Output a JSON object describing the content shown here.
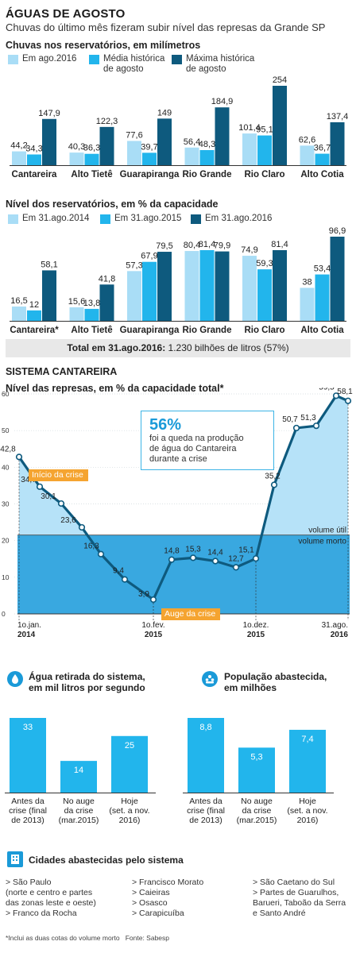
{
  "header": {
    "title": "ÁGUAS DE AGOSTO",
    "subtitle": "Chuvas do último mês fizeram subir nível das represas da Grande SP"
  },
  "colors": {
    "light": "#a9ddf6",
    "mid": "#22b5ec",
    "dark": "#0e5a7e",
    "orange": "#f5a430"
  },
  "chart_data": [
    {
      "type": "bar",
      "title": "Chuvas nos reservatórios, em milímetros",
      "categories": [
        "Cantareira",
        "Alto Tietê",
        "Guarapiranga",
        "Rio Grande",
        "Rio Claro",
        "Alto Cotia"
      ],
      "series": [
        {
          "name": "Em ago.2016",
          "values": [
            44.2,
            40.3,
            77.6,
            56.4,
            101.4,
            62.6
          ],
          "labels": [
            "44,2",
            "40,3",
            "77,6",
            "56,4",
            "101,4",
            "62,6"
          ]
        },
        {
          "name": "Média histórica de agosto",
          "values": [
            34.3,
            36.3,
            39.7,
            48.3,
            95.1,
            36.7
          ],
          "labels": [
            "34,3",
            "36,3",
            "39,7",
            "48,3",
            "95,1",
            "36,7"
          ]
        },
        {
          "name": "Máxima histórica de agosto",
          "values": [
            147.9,
            122.3,
            149,
            184.9,
            254,
            137.4
          ],
          "labels": [
            "147,9",
            "122,3",
            "149",
            "184,9",
            "254",
            "137,4"
          ]
        }
      ],
      "ylim": [
        0,
        254
      ]
    },
    {
      "type": "bar",
      "title": "Nível dos reservatórios, em % da capacidade",
      "categories": [
        "Cantareira*",
        "Alto Tietê",
        "Guarapiranga",
        "Rio Grande",
        "Rio Claro",
        "Alto Cotia"
      ],
      "series": [
        {
          "name": "Em 31.ago.2014",
          "values": [
            16.5,
            15.6,
            57.3,
            80.4,
            74.9,
            38
          ],
          "labels": [
            "16,5",
            "15,6",
            "57,3",
            "80,4",
            "74,9",
            "38"
          ]
        },
        {
          "name": "Em 31.ago.2015",
          "values": [
            12,
            13.8,
            67.9,
            81.4,
            59.3,
            53.4
          ],
          "labels": [
            "12",
            "13,8",
            "67,9",
            "81,4",
            "59,3",
            "53,4"
          ]
        },
        {
          "name": "Em 31.ago.2016",
          "values": [
            58.1,
            41.8,
            79.5,
            79.9,
            81.4,
            96.9
          ],
          "labels": [
            "58,1",
            "41,8",
            "79,5",
            "79,9",
            "81,4",
            "96,9"
          ]
        }
      ],
      "ylim": [
        0,
        96.9
      ]
    },
    {
      "type": "line",
      "title": "Nível das represas, em % da capacidade total*",
      "points": [
        {
          "v": 42.8,
          "label": "42,8"
        },
        {
          "v": 34.7,
          "label": "34,7"
        },
        {
          "v": 30.1,
          "label": "30,1"
        },
        {
          "v": 23.6,
          "label": "23,6"
        },
        {
          "v": 16.3,
          "label": "16,3"
        },
        {
          "v": 9.4,
          "label": "9,4"
        },
        {
          "v": 3.9,
          "label": "3,9"
        },
        {
          "v": 14.8,
          "label": "14,8"
        },
        {
          "v": 15.3,
          "label": "15,3"
        },
        {
          "v": 14.4,
          "label": "14,4"
        },
        {
          "v": 12.7,
          "label": "12,7"
        },
        {
          "v": 15.1,
          "label": "15,1"
        },
        {
          "v": 35.2,
          "label": "35,2"
        },
        {
          "v": 50.7,
          "label": "50,7"
        },
        {
          "v": 51.3,
          "label": "51,3"
        },
        {
          "v": 59.5,
          "label": "59,5"
        },
        {
          "v": 58.1,
          "label": "58,1"
        }
      ],
      "yticks": [
        "60",
        "50",
        "40",
        "30",
        "20",
        "10",
        "0"
      ],
      "ylim": [
        0,
        60
      ],
      "xticks": [
        {
          "day": "1o.jan.",
          "year": "2014"
        },
        {
          "day": "1o.fev.",
          "year": "2015"
        },
        {
          "day": "1o.dez.",
          "year": "2015"
        },
        {
          "day": "31.ago.",
          "year": "2016"
        }
      ],
      "threshold": 21.5,
      "threshold_labels": {
        "above": "volume útil",
        "below": "volume morto"
      }
    },
    {
      "type": "bar",
      "title": "Água retirada do sistema, em mil litros por segundo",
      "categories": [
        "Antes da crise (final de 2013)",
        "No auge da crise (mar.2015)",
        "Hoje (set. a nov. 2016)"
      ],
      "values": [
        33,
        14,
        25
      ]
    },
    {
      "type": "bar",
      "title": "População abastecida, em milhões",
      "categories": [
        "Antes da crise (final de 2013)",
        "No auge da crise (mar.2015)",
        "Hoje (set. a nov. 2016)"
      ],
      "values": [
        8.8,
        5.3,
        7.4
      ],
      "labels": [
        "8,8",
        "5,3",
        "7,4"
      ]
    }
  ],
  "total": {
    "label": "Total em 31.ago.2016:",
    "value": "1.230 bilhões de litros (57%)"
  },
  "cantareira": {
    "section_title": "SISTEMA CANTAREIRA",
    "chart_title": "Nível das represas, em % da capacidade total*",
    "callout_big": "56%",
    "callout_l1": "foi a queda na produção",
    "callout_l2": "de água do Cantareira",
    "callout_l3": "durante a crise",
    "tag_start": "Início da crise",
    "tag_peak": "Auge da crise"
  },
  "small1": {
    "title1": "Água retirada do sistema,",
    "title2": "em mil litros por segundo",
    "values": [
      "33",
      "14",
      "25"
    ],
    "cats": [
      [
        "Antes da",
        "crise (final",
        "de 2013)"
      ],
      [
        "No auge",
        "da crise",
        "(mar.2015)"
      ],
      [
        "Hoje",
        "(set. a nov.",
        "2016)"
      ]
    ]
  },
  "small2": {
    "title1": "População abastecida,",
    "title2": "em milhões"
  },
  "cities": {
    "title": "Cidades abastecidas pelo sistema",
    "col1": [
      "> São Paulo",
      "(norte e centro e partes",
      "das zonas leste e oeste)",
      "> Franco da Rocha"
    ],
    "col2": [
      "> Francisco Morato",
      "> Caieiras",
      "> Osasco",
      "> Carapicuíba"
    ],
    "col3": [
      "> São Caetano do Sul",
      "> Partes de Guarulhos,",
      "Barueri, Taboão da Serra",
      "e Santo André"
    ]
  },
  "footnote": "*Inclui as duas cotas do volume morto   Fonte: Sabesp"
}
